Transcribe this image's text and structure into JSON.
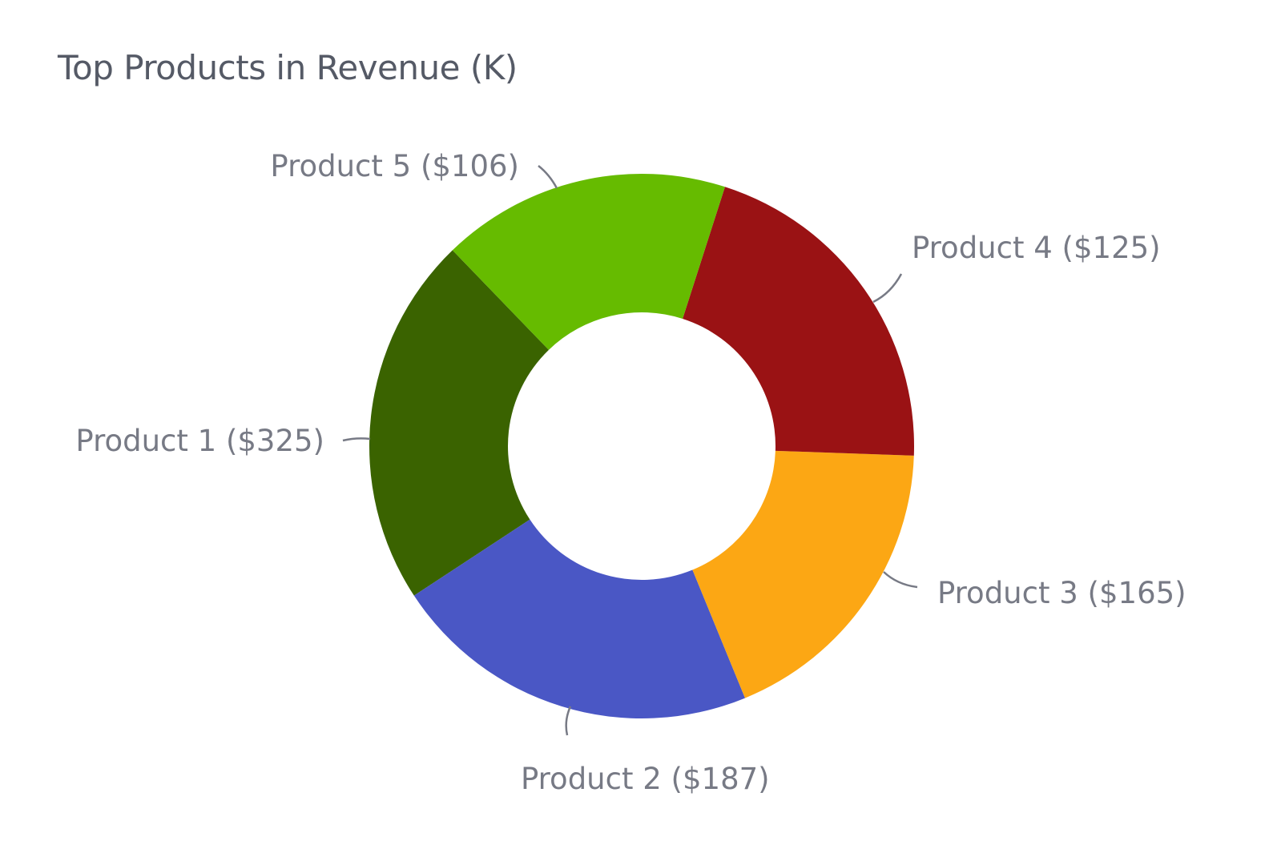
{
  "chart_data": {
    "type": "pie",
    "donut": true,
    "title": "Top Products in Revenue (K)",
    "categories": [
      "Product 1",
      "Product 2",
      "Product 3",
      "Product 4",
      "Product 5"
    ],
    "values": [
      325,
      187,
      165,
      125,
      106
    ],
    "labels": [
      "Product 1 ($325)",
      "Product 2 ($187)",
      "Product 3 ($165)",
      "Product 4 ($125)",
      "Product 5 ($106)"
    ],
    "colors": [
      "#3a6300",
      "#4a57c5",
      "#fca714",
      "#9a1214",
      "#66bb00"
    ],
    "legend": "none"
  }
}
